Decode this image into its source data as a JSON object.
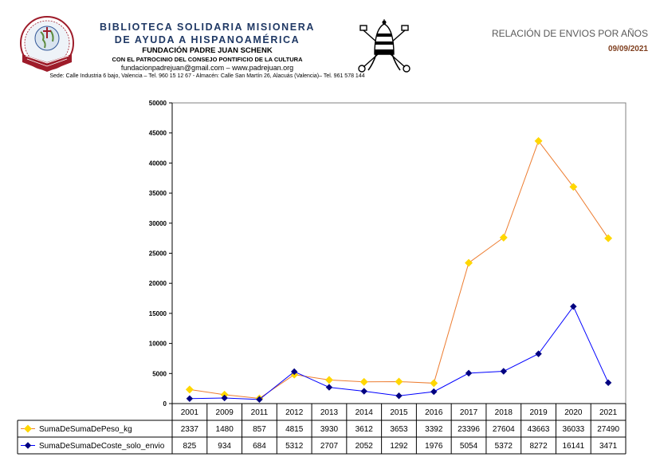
{
  "header": {
    "org_line1": "BIBLIOTECA SOLIDARIA MISIONERA",
    "org_line2": "DE AYUDA A HISPANOAMÉRICA",
    "org_line3": "FUNDACIÓN PADRE JUAN SCHENK",
    "org_line4": "CON EL PATROCINIO DEL CONSEJO PONTIFICIO DE LA CULTURA",
    "org_line5": "fundacionpadrejuan@gmail.com – www.padrejuan.org",
    "org_line6": "Sede: Calle Industria 6 bajo, Valencia – Tel. 960 15 12 67 - Almacén: Calle San Martín 26, Alacuás (Valencia)– Tel. 961 578 144",
    "report_title": "RELACIÓN DE ENVIOS POR AÑOS",
    "report_date": "09/09/2021",
    "left_logo_icon": "library-globe-book-logo",
    "right_logo_icon": "papal-tiara-keys-emblem"
  },
  "chart_data": {
    "type": "line",
    "title": "",
    "xlabel": "",
    "ylabel": "",
    "categories": [
      "2001",
      "2009",
      "2011",
      "2012",
      "2013",
      "2014",
      "2015",
      "2016",
      "2017",
      "2018",
      "2019",
      "2020",
      "2021"
    ],
    "ylim": [
      0,
      50000
    ],
    "yticks": [
      0,
      5000,
      10000,
      15000,
      20000,
      25000,
      30000,
      35000,
      40000,
      45000,
      50000
    ],
    "grid": false,
    "legend": "data table below chart",
    "series": [
      {
        "name": "SumaDeSumaDePeso_kg",
        "line_color": "#ed7d31",
        "marker_color": "#ffd700",
        "marker": "square",
        "values": [
          2337,
          1480,
          857,
          4815,
          3930,
          3612,
          3653,
          3392,
          23396,
          27604,
          43663,
          36033,
          27490
        ]
      },
      {
        "name": "SumaDeSumaDeCoste_solo_envio",
        "line_color": "#0000ff",
        "marker_color": "#000080",
        "marker": "diamond",
        "values": [
          825,
          934,
          684,
          5312,
          2707,
          2052,
          1292,
          1976,
          5054,
          5372,
          8272,
          16141,
          3471
        ]
      }
    ]
  }
}
